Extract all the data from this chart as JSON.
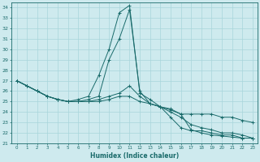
{
  "xlabel": "Humidex (Indice chaleur)",
  "xlim": [
    -0.5,
    23.5
  ],
  "ylim": [
    21,
    34.5
  ],
  "yticks": [
    21,
    22,
    23,
    24,
    25,
    26,
    27,
    28,
    29,
    30,
    31,
    32,
    33,
    34
  ],
  "xticks": [
    0,
    1,
    2,
    3,
    4,
    5,
    6,
    7,
    8,
    9,
    10,
    11,
    12,
    13,
    14,
    15,
    16,
    17,
    18,
    19,
    20,
    21,
    22,
    23
  ],
  "background_color": "#ceeaee",
  "grid_color": "#a8d5db",
  "line_color": "#1a6b6b",
  "series": [
    {
      "x": [
        0,
        1,
        2,
        3,
        4,
        5,
        6,
        7,
        8,
        9,
        10,
        11,
        12,
        13,
        14,
        15,
        16,
        17,
        18,
        19,
        20,
        21,
        22,
        23
      ],
      "y": [
        27.0,
        26.5,
        26.0,
        25.5,
        25.2,
        25.0,
        25.2,
        25.5,
        27.5,
        30.0,
        33.5,
        34.2,
        25.8,
        25.2,
        24.5,
        23.5,
        22.5,
        22.2,
        22.2,
        22.0,
        21.8,
        21.8,
        21.5,
        21.5
      ]
    },
    {
      "x": [
        0,
        1,
        2,
        3,
        4,
        5,
        6,
        7,
        8,
        9,
        10,
        11,
        12,
        13,
        14,
        15,
        16,
        17,
        18,
        19,
        20,
        21,
        22,
        23
      ],
      "y": [
        27.0,
        26.5,
        26.0,
        25.5,
        25.2,
        25.0,
        25.0,
        25.2,
        25.5,
        29.0,
        31.0,
        33.8,
        26.0,
        24.8,
        24.5,
        24.2,
        23.8,
        22.3,
        22.0,
        21.8,
        21.7,
        21.6,
        21.5,
        21.5
      ]
    },
    {
      "x": [
        0,
        1,
        2,
        3,
        4,
        5,
        6,
        7,
        8,
        9,
        10,
        11,
        12,
        13,
        14,
        15,
        16,
        17,
        18,
        19,
        20,
        21,
        22,
        23
      ],
      "y": [
        27.0,
        26.5,
        26.0,
        25.5,
        25.2,
        25.0,
        25.0,
        25.0,
        25.2,
        25.5,
        25.8,
        26.5,
        25.5,
        24.8,
        24.5,
        24.0,
        23.5,
        22.8,
        22.5,
        22.3,
        22.0,
        22.0,
        21.8,
        21.5
      ]
    },
    {
      "x": [
        0,
        1,
        2,
        3,
        4,
        5,
        6,
        7,
        8,
        9,
        10,
        11,
        12,
        13,
        14,
        15,
        16,
        17,
        18,
        19,
        20,
        21,
        22,
        23
      ],
      "y": [
        27.0,
        26.5,
        26.0,
        25.5,
        25.2,
        25.0,
        25.0,
        25.0,
        25.0,
        25.2,
        25.5,
        25.5,
        25.0,
        24.8,
        24.5,
        24.3,
        23.8,
        23.8,
        23.8,
        23.8,
        23.5,
        23.5,
        23.2,
        23.0
      ]
    }
  ]
}
